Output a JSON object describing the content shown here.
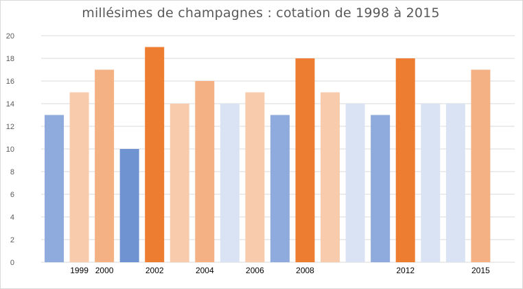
{
  "chart_data": {
    "type": "bar",
    "title": "millésimes de champagnes : cotation de 1998 à 2015",
    "xlabel": "",
    "ylabel": "",
    "ylim": [
      0,
      20
    ],
    "ytick_step": 2,
    "grid": true,
    "legend": "none",
    "category_labels": [
      "",
      "1999",
      "2000",
      "",
      "2002",
      "",
      "2004",
      "",
      "2006",
      "",
      "2008",
      "",
      "",
      "",
      "2012",
      "",
      "",
      "2015"
    ],
    "values": [
      13,
      15,
      17,
      10,
      19,
      14,
      16,
      14,
      15,
      13,
      18,
      15,
      14,
      13,
      18,
      14,
      14,
      17
    ],
    "bar_colors": [
      "#8faadc",
      "#f8cbad",
      "#f4b183",
      "#6f93d1",
      "#ed7d31",
      "#f8cbad",
      "#f4b183",
      "#dae3f3",
      "#f8cbad",
      "#8faadc",
      "#ed7d31",
      "#f8cbad",
      "#dae3f3",
      "#8faadc",
      "#ed7d31",
      "#dae3f3",
      "#dae3f3",
      "#f4b183"
    ],
    "gridline_color": "#d9d9d9"
  }
}
